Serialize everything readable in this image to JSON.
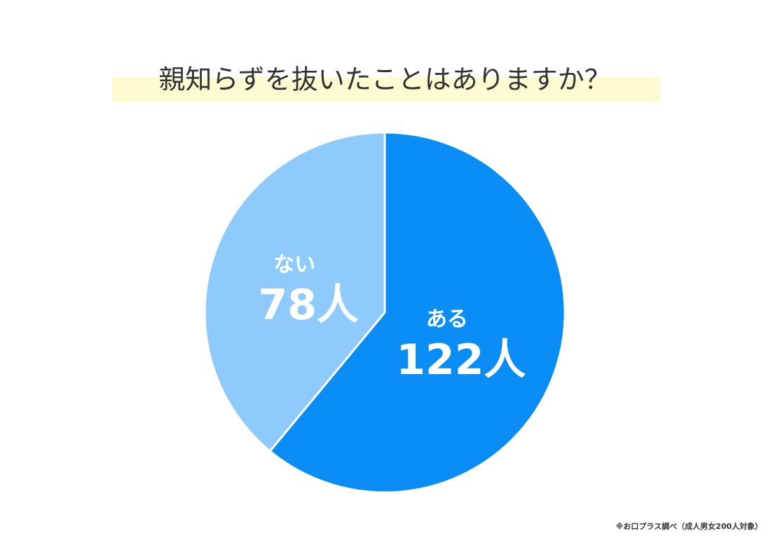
{
  "chart_data": {
    "type": "pie",
    "title": "親知らずを抜いたことはありますか？",
    "categories": [
      "ある",
      "ない"
    ],
    "values": [
      122,
      78
    ],
    "value_labels": [
      "122人",
      "78人"
    ],
    "colors": [
      "#0a8ef6",
      "#8ecbfc"
    ],
    "note": "※お口プラス調べ（成人男女200人対象）"
  }
}
